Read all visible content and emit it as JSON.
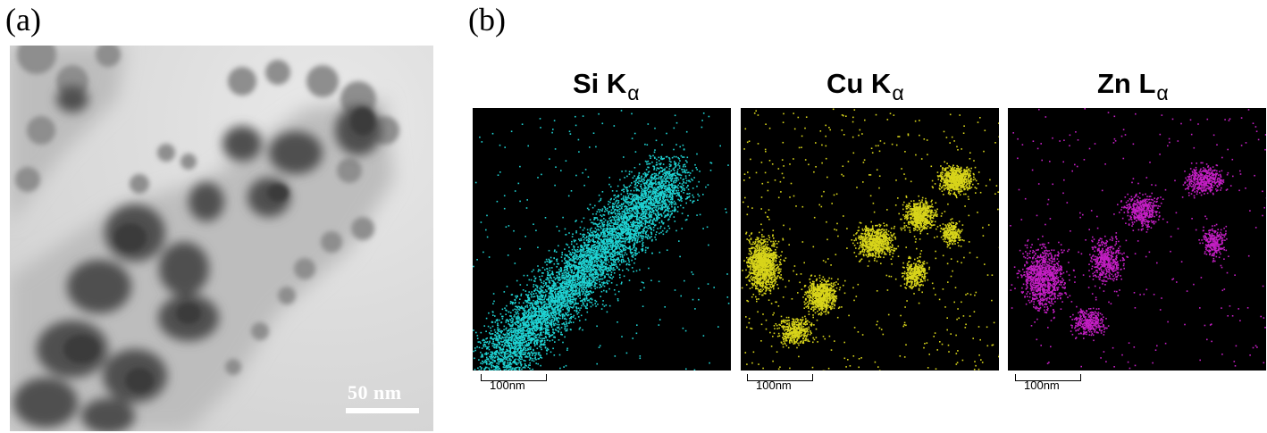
{
  "panels": {
    "a": {
      "label": "(a)",
      "scale_bar": "50 nm"
    },
    "b": {
      "label": "(b)",
      "maps": [
        {
          "element": "Si K",
          "subscript": "α",
          "color": "#1fd3d3",
          "scale_bar": "100nm"
        },
        {
          "element": "Cu K",
          "subscript": "α",
          "color": "#d8d41a",
          "scale_bar": "100nm"
        },
        {
          "element": "Zn L",
          "subscript": "α",
          "color": "#c41ec4",
          "scale_bar": "100nm"
        }
      ]
    }
  }
}
